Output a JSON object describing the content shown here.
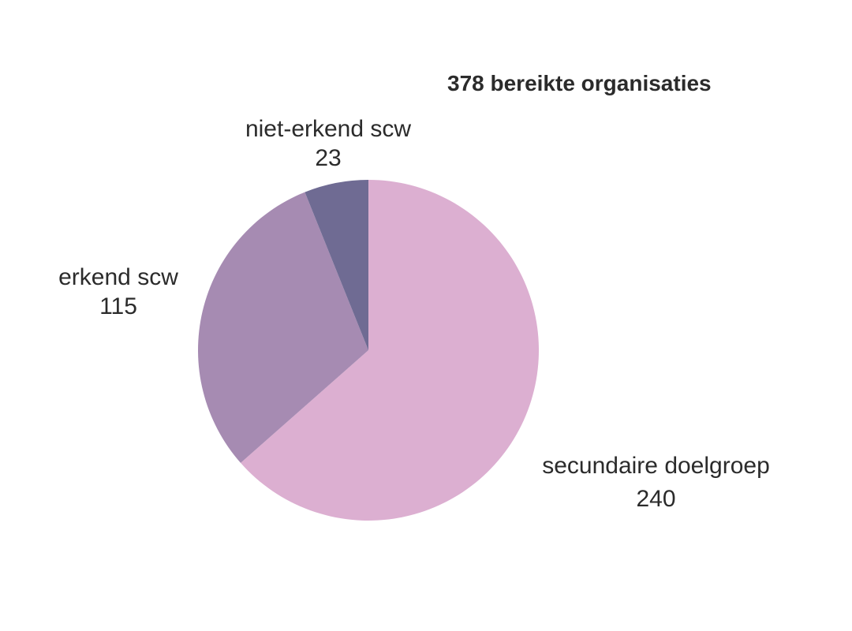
{
  "chart_data": {
    "type": "pie",
    "title": "378 bereikte organisaties",
    "slices": [
      {
        "label": "secundaire doelgroep",
        "value": 240,
        "color": "#dcafd1"
      },
      {
        "label": "erkend scw",
        "value": 115,
        "color": "#a68bb2"
      },
      {
        "label": "niet-erkend scw",
        "value": 23,
        "color": "#6f6b93"
      }
    ],
    "start": "top",
    "direction": "clockwise",
    "legend": "none"
  }
}
